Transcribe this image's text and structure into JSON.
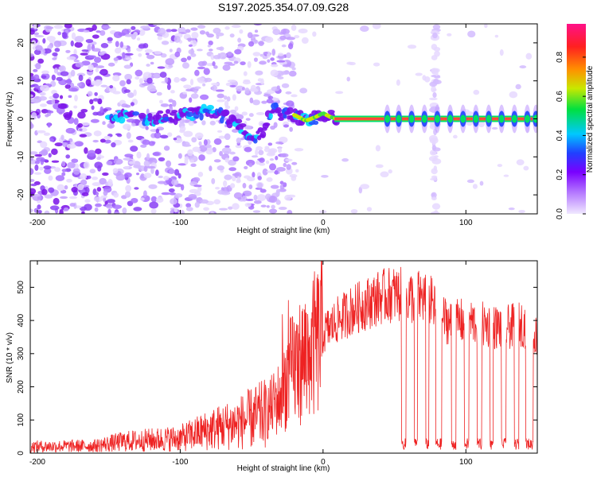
{
  "title": "S197.2025.354.07.09.G28",
  "colors": {
    "snr_line": "#ee2222",
    "track_ridge": "#ff3355"
  },
  "chart_data": [
    {
      "type": "heatmap",
      "name": "spectrogram",
      "xlabel": "Height of straight line (km)",
      "ylabel": "Frequency (Hz)",
      "xlim": [
        -205,
        150
      ],
      "ylim": [
        -25,
        25
      ],
      "x_ticks": [
        -200,
        -100,
        0,
        100
      ],
      "y_ticks": [
        -20,
        -10,
        0,
        10,
        20
      ],
      "colorbar": {
        "label": "Normalized spectral amplitude",
        "range": [
          0,
          0.97
        ],
        "ticks": [
          0.0,
          0.2,
          0.4,
          0.6,
          0.8
        ],
        "stops": [
          "#e8e0ff",
          "#8a2be2",
          "#3050ff",
          "#00d0ff",
          "#00e060",
          "#d0e000",
          "#ff8000",
          "#ff1a40",
          "#ff2080"
        ]
      },
      "ridge": {
        "description": "tone track near 0 Hz",
        "x": [
          -150,
          -120,
          -100,
          -80,
          -60,
          -50,
          -42,
          -35,
          -28,
          -20,
          -12,
          -5,
          0,
          5,
          10,
          50,
          100,
          150
        ],
        "y": [
          1,
          0,
          1,
          2,
          -1,
          -5,
          -3,
          3,
          1,
          1,
          -0.5,
          0.5,
          1.5,
          0.5,
          0,
          0,
          0,
          0
        ]
      },
      "pulse_centers_km": [
        45,
        53,
        62,
        71,
        80,
        89,
        98,
        107,
        116,
        125,
        134,
        143,
        149
      ]
    },
    {
      "type": "line",
      "name": "snr",
      "xlabel": "Height of straight line (km)",
      "ylabel": "SNR (10 * v/v)",
      "xlim": [
        -205,
        150
      ],
      "ylim": [
        0,
        580
      ],
      "x_ticks": [
        -200,
        -100,
        0,
        100
      ],
      "y_ticks": [
        0,
        100,
        200,
        300,
        400,
        500
      ],
      "envelope": {
        "x": [
          -205,
          -160,
          -140,
          -120,
          -100,
          -80,
          -60,
          -40,
          -30,
          -25,
          -20,
          -10,
          0,
          10,
          20,
          30,
          40,
          50,
          60,
          70,
          75,
          80,
          90,
          100,
          110,
          120,
          130,
          140,
          150
        ],
        "base": [
          20,
          22,
          35,
          40,
          45,
          70,
          90,
          120,
          170,
          230,
          260,
          300,
          360,
          400,
          430,
          450,
          470,
          480,
          470,
          470,
          460,
          420,
          390,
          400,
          390,
          380,
          380,
          390,
          350
        ]
      },
      "dropouts_km": [
        [
          55,
          58
        ],
        [
          64,
          66
        ],
        [
          72,
          74
        ],
        [
          79,
          83
        ],
        [
          90,
          93
        ],
        [
          99,
          102
        ],
        [
          108,
          111
        ],
        [
          117,
          119
        ],
        [
          125,
          128
        ],
        [
          134,
          137
        ],
        [
          142,
          147
        ]
      ]
    }
  ]
}
